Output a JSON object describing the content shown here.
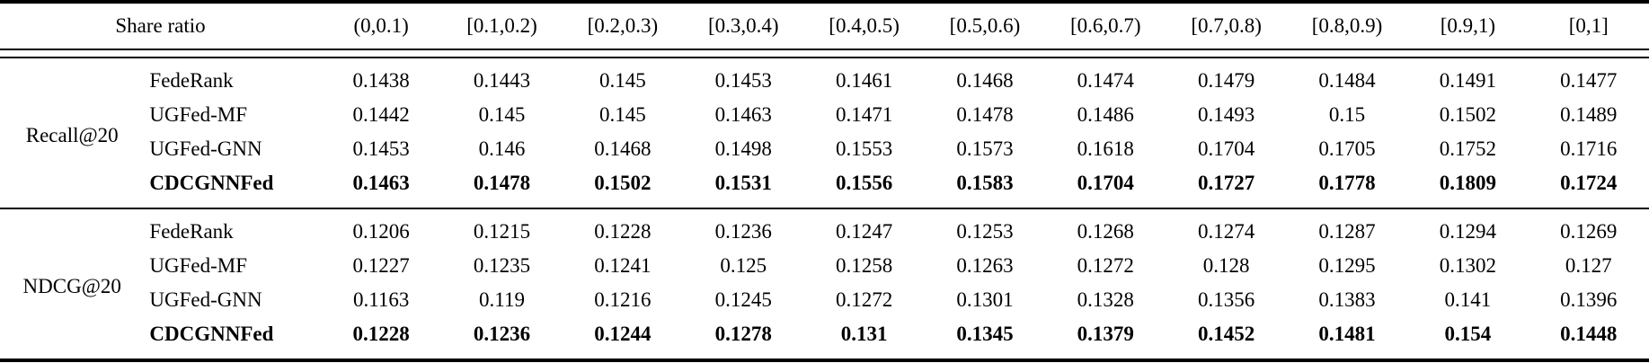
{
  "table": {
    "header": {
      "label": "Share ratio",
      "columns": [
        "(0,0.1)",
        "[0.1,0.2)",
        "[0.2,0.3)",
        "[0.3,0.4)",
        "[0.4,0.5)",
        "[0.5,0.6)",
        "[0.6,0.7)",
        "[0.7,0.8)",
        "[0.8,0.9)",
        "[0.9,1)",
        "[0,1]"
      ]
    },
    "sections": [
      {
        "metric": "Recall@20",
        "rows": [
          {
            "method": "FedeRank",
            "bold": false,
            "values": [
              "0.1438",
              "0.1443",
              "0.145",
              "0.1453",
              "0.1461",
              "0.1468",
              "0.1474",
              "0.1479",
              "0.1484",
              "0.1491",
              "0.1477"
            ]
          },
          {
            "method": "UGFed-MF",
            "bold": false,
            "values": [
              "0.1442",
              "0.145",
              "0.145",
              "0.1463",
              "0.1471",
              "0.1478",
              "0.1486",
              "0.1493",
              "0.15",
              "0.1502",
              "0.1489"
            ]
          },
          {
            "method": "UGFed-GNN",
            "bold": false,
            "values": [
              "0.1453",
              "0.146",
              "0.1468",
              "0.1498",
              "0.1553",
              "0.1573",
              "0.1618",
              "0.1704",
              "0.1705",
              "0.1752",
              "0.1716"
            ]
          },
          {
            "method": "CDCGNNFed",
            "bold": true,
            "values": [
              "0.1463",
              "0.1478",
              "0.1502",
              "0.1531",
              "0.1556",
              "0.1583",
              "0.1704",
              "0.1727",
              "0.1778",
              "0.1809",
              "0.1724"
            ]
          }
        ]
      },
      {
        "metric": "NDCG@20",
        "rows": [
          {
            "method": "FedeRank",
            "bold": false,
            "values": [
              "0.1206",
              "0.1215",
              "0.1228",
              "0.1236",
              "0.1247",
              "0.1253",
              "0.1268",
              "0.1274",
              "0.1287",
              "0.1294",
              "0.1269"
            ]
          },
          {
            "method": "UGFed-MF",
            "bold": false,
            "values": [
              "0.1227",
              "0.1235",
              "0.1241",
              "0.125",
              "0.1258",
              "0.1263",
              "0.1272",
              "0.128",
              "0.1295",
              "0.1302",
              "0.127"
            ]
          },
          {
            "method": "UGFed-GNN",
            "bold": false,
            "values": [
              "0.1163",
              "0.119",
              "0.1216",
              "0.1245",
              "0.1272",
              "0.1301",
              "0.1328",
              "0.1356",
              "0.1383",
              "0.141",
              "0.1396"
            ]
          },
          {
            "method": "CDCGNNFed",
            "bold": true,
            "values": [
              "0.1228",
              "0.1236",
              "0.1244",
              "0.1278",
              "0.131",
              "0.1345",
              "0.1379",
              "0.1452",
              "0.1481",
              "0.154",
              "0.1448"
            ]
          }
        ]
      }
    ]
  }
}
